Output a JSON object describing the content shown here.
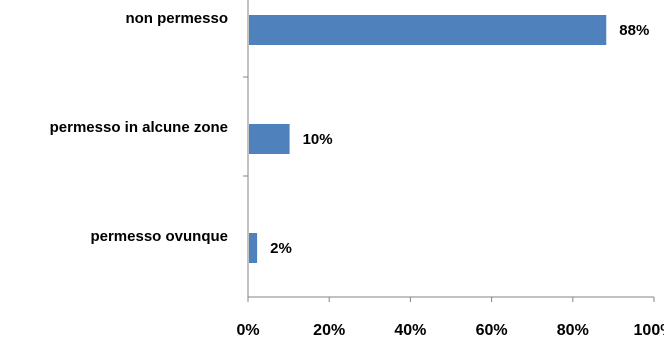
{
  "chart_data": {
    "type": "bar",
    "orientation": "horizontal",
    "categories": [
      "non permesso",
      "permesso in alcune zone",
      "permesso ovunque"
    ],
    "values": [
      88,
      10,
      2
    ],
    "value_labels": [
      "88%",
      "10%",
      "2%"
    ],
    "xlim": [
      0,
      100
    ],
    "xticks": [
      "0%",
      "20%",
      "40%",
      "60%",
      "80%",
      "100%"
    ],
    "bar_color": "#4F81BD",
    "grid": false,
    "legend": "none",
    "title": "",
    "xlabel": "",
    "ylabel": ""
  }
}
